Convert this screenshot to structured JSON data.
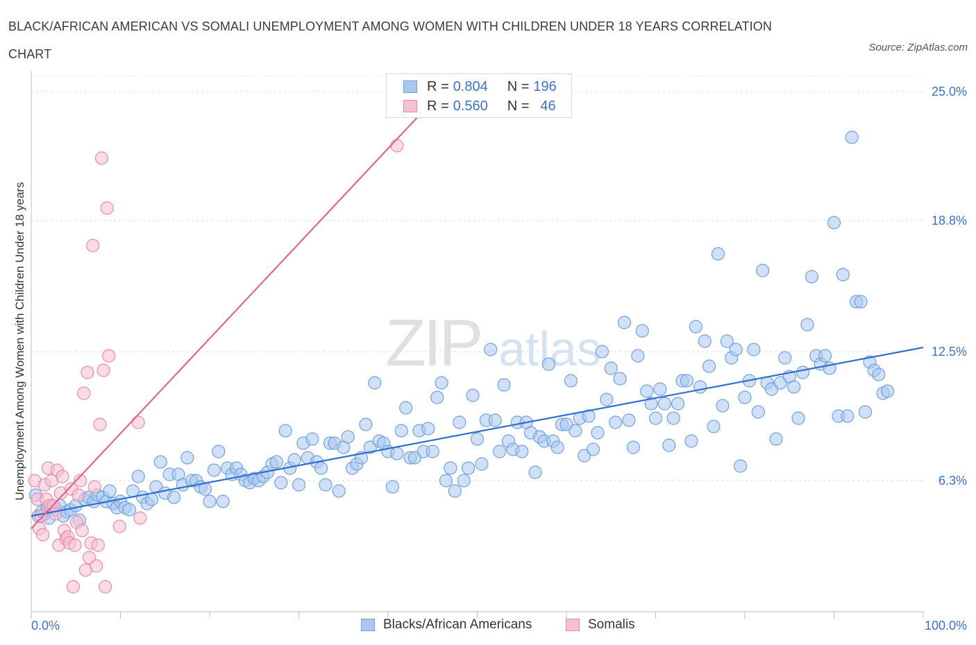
{
  "title": "BLACK/AFRICAN AMERICAN VS SOMALI UNEMPLOYMENT AMONG WOMEN WITH CHILDREN UNDER 18 YEARS CORRELATION CHART",
  "source": "Source: ZipAtlas.com",
  "watermark": {
    "zip": "ZIP",
    "atlas": "atlas"
  },
  "stats_legend": [
    {
      "r_label": "R =",
      "r_value": "0.804",
      "n_label": "N =",
      "n_value": "196",
      "color": "#a9c8f0",
      "border": "#6f9fe0"
    },
    {
      "r_label": "R =",
      "r_value": "0.560",
      "n_label": "N =",
      "n_value": "46",
      "color": "#f7c0d1",
      "border": "#e88aa8"
    }
  ],
  "colors": {
    "blue_fill": "#a9c8f0",
    "blue_stroke": "#6f9fe0",
    "blue_line": "#2f6fcf",
    "pink_fill": "#f7c0d1",
    "pink_stroke": "#e88aa8",
    "pink_line": "#e0648c",
    "tick_text": "#3a72c8"
  },
  "chart_data": {
    "type": "scatter",
    "title": "BLACK/AFRICAN AMERICAN VS SOMALI UNEMPLOYMENT AMONG WOMEN WITH CHILDREN UNDER 18 YEARS CORRELATION CHART",
    "xlabel": "",
    "ylabel": "Unemployment Among Women with Children Under 18 years",
    "xlim": [
      0,
      100
    ],
    "ylim": [
      0,
      27.5
    ],
    "x_tick_labels": [
      "0.0%",
      "100.0%"
    ],
    "y_ticks": [
      6.3,
      12.5,
      18.8,
      25.0
    ],
    "y_tick_labels": [
      "6.3%",
      "12.5%",
      "18.8%",
      "25.0%"
    ],
    "grid": true,
    "legend_position": "bottom",
    "series": [
      {
        "name": "Blacks/African Americans",
        "trend": {
          "x": [
            0,
            100
          ],
          "y": [
            4.6,
            12.7
          ]
        },
        "points": [
          [
            0.5,
            5.6
          ],
          [
            0.8,
            4.6
          ],
          [
            1.2,
            4.8
          ],
          [
            1.5,
            4.7
          ],
          [
            1.8,
            5.0
          ],
          [
            2.0,
            4.5
          ],
          [
            2.3,
            5.0
          ],
          [
            2.8,
            4.9
          ],
          [
            3.2,
            5.1
          ],
          [
            3.6,
            4.6
          ],
          [
            4.0,
            4.8
          ],
          [
            4.4,
            4.9
          ],
          [
            5.0,
            5.1
          ],
          [
            5.4,
            4.4
          ],
          [
            6.0,
            5.4
          ],
          [
            6.4,
            5.5
          ],
          [
            7.0,
            5.3
          ],
          [
            7.4,
            5.6
          ],
          [
            8.0,
            5.5
          ],
          [
            8.4,
            5.3
          ],
          [
            8.8,
            5.8
          ],
          [
            9.2,
            5.2
          ],
          [
            9.6,
            5.0
          ],
          [
            10.0,
            5.3
          ],
          [
            10.5,
            5.0
          ],
          [
            11.0,
            4.9
          ],
          [
            11.4,
            5.8
          ],
          [
            12.0,
            6.5
          ],
          [
            12.5,
            5.5
          ],
          [
            13.0,
            5.2
          ],
          [
            13.5,
            5.4
          ],
          [
            14.0,
            6.0
          ],
          [
            14.5,
            7.2
          ],
          [
            15.0,
            5.7
          ],
          [
            15.5,
            6.6
          ],
          [
            16.0,
            5.5
          ],
          [
            16.5,
            6.6
          ],
          [
            17.0,
            6.1
          ],
          [
            17.5,
            7.4
          ],
          [
            18.0,
            6.3
          ],
          [
            18.5,
            6.3
          ],
          [
            19.0,
            6.0
          ],
          [
            19.5,
            5.9
          ],
          [
            20.0,
            5.3
          ],
          [
            20.5,
            6.8
          ],
          [
            21.0,
            7.7
          ],
          [
            21.5,
            5.3
          ],
          [
            22.0,
            6.9
          ],
          [
            22.5,
            6.6
          ],
          [
            23.0,
            6.9
          ],
          [
            23.5,
            6.6
          ],
          [
            24.0,
            6.3
          ],
          [
            24.5,
            6.2
          ],
          [
            25.0,
            6.4
          ],
          [
            25.5,
            6.3
          ],
          [
            26.0,
            6.5
          ],
          [
            26.5,
            6.7
          ],
          [
            27.0,
            7.1
          ],
          [
            27.5,
            7.2
          ],
          [
            28.0,
            6.2
          ],
          [
            28.5,
            8.7
          ],
          [
            29.0,
            6.9
          ],
          [
            29.5,
            7.3
          ],
          [
            30.0,
            6.1
          ],
          [
            30.5,
            8.1
          ],
          [
            31.0,
            7.4
          ],
          [
            31.5,
            8.3
          ],
          [
            32.0,
            7.2
          ],
          [
            32.5,
            6.9
          ],
          [
            33.0,
            6.1
          ],
          [
            33.5,
            8.1
          ],
          [
            34.0,
            8.1
          ],
          [
            34.5,
            5.8
          ],
          [
            35.0,
            7.9
          ],
          [
            35.5,
            8.4
          ],
          [
            36.0,
            6.9
          ],
          [
            36.5,
            7.1
          ],
          [
            37.0,
            7.4
          ],
          [
            37.5,
            9.0
          ],
          [
            38.0,
            7.9
          ],
          [
            38.5,
            11.0
          ],
          [
            39.0,
            8.2
          ],
          [
            39.5,
            8.1
          ],
          [
            40.0,
            7.7
          ],
          [
            40.5,
            6.0
          ],
          [
            41.0,
            7.6
          ],
          [
            41.5,
            8.7
          ],
          [
            42.0,
            9.8
          ],
          [
            42.5,
            7.4
          ],
          [
            43.0,
            7.4
          ],
          [
            43.5,
            8.7
          ],
          [
            44.0,
            7.7
          ],
          [
            44.5,
            8.8
          ],
          [
            45.0,
            7.7
          ],
          [
            45.5,
            10.3
          ],
          [
            46.0,
            11.0
          ],
          [
            46.5,
            6.3
          ],
          [
            47.0,
            6.9
          ],
          [
            47.5,
            5.8
          ],
          [
            48.0,
            9.1
          ],
          [
            48.5,
            6.3
          ],
          [
            49.0,
            6.9
          ],
          [
            49.5,
            10.4
          ],
          [
            50.0,
            8.3
          ],
          [
            50.5,
            7.1
          ],
          [
            51.0,
            9.2
          ],
          [
            51.5,
            12.6
          ],
          [
            52.0,
            9.2
          ],
          [
            52.5,
            7.7
          ],
          [
            53.0,
            10.9
          ],
          [
            53.5,
            8.2
          ],
          [
            54.0,
            7.8
          ],
          [
            54.5,
            9.1
          ],
          [
            55.0,
            7.7
          ],
          [
            55.5,
            9.1
          ],
          [
            56.0,
            8.6
          ],
          [
            56.5,
            6.7
          ],
          [
            57.0,
            8.4
          ],
          [
            57.5,
            8.2
          ],
          [
            58.0,
            11.9
          ],
          [
            58.5,
            8.2
          ],
          [
            59.0,
            7.9
          ],
          [
            59.5,
            9.0
          ],
          [
            60.0,
            9.0
          ],
          [
            60.5,
            11.1
          ],
          [
            61.0,
            8.7
          ],
          [
            61.5,
            9.3
          ],
          [
            62.0,
            7.5
          ],
          [
            62.5,
            9.4
          ],
          [
            63.0,
            7.8
          ],
          [
            63.5,
            8.6
          ],
          [
            64.0,
            12.5
          ],
          [
            64.5,
            10.2
          ],
          [
            65.0,
            11.7
          ],
          [
            65.5,
            9.1
          ],
          [
            66.0,
            11.2
          ],
          [
            66.5,
            13.9
          ],
          [
            67.0,
            9.2
          ],
          [
            67.5,
            7.9
          ],
          [
            68.0,
            12.3
          ],
          [
            68.5,
            13.5
          ],
          [
            69.0,
            10.6
          ],
          [
            69.5,
            10.0
          ],
          [
            70.0,
            9.3
          ],
          [
            70.5,
            10.7
          ],
          [
            71.0,
            10.0
          ],
          [
            71.5,
            8.0
          ],
          [
            72.0,
            9.3
          ],
          [
            72.5,
            10.0
          ],
          [
            73.0,
            11.1
          ],
          [
            73.5,
            11.1
          ],
          [
            74.0,
            8.2
          ],
          [
            74.5,
            13.7
          ],
          [
            75.0,
            10.8
          ],
          [
            75.5,
            13.0
          ],
          [
            76.0,
            11.8
          ],
          [
            76.5,
            8.9
          ],
          [
            77.0,
            17.2
          ],
          [
            77.5,
            9.9
          ],
          [
            78.0,
            13.0
          ],
          [
            78.5,
            12.2
          ],
          [
            79.0,
            12.6
          ],
          [
            79.5,
            7.0
          ],
          [
            80.0,
            10.3
          ],
          [
            80.5,
            11.1
          ],
          [
            81.0,
            12.6
          ],
          [
            81.5,
            9.6
          ],
          [
            82.0,
            16.4
          ],
          [
            82.5,
            11.0
          ],
          [
            83.0,
            10.7
          ],
          [
            83.5,
            8.3
          ],
          [
            84.0,
            11.0
          ],
          [
            84.5,
            12.2
          ],
          [
            85.0,
            11.3
          ],
          [
            85.5,
            10.8
          ],
          [
            86.0,
            9.3
          ],
          [
            86.5,
            11.5
          ],
          [
            87.0,
            13.8
          ],
          [
            87.5,
            16.1
          ],
          [
            88.0,
            12.3
          ],
          [
            88.5,
            11.9
          ],
          [
            89.0,
            12.3
          ],
          [
            89.5,
            11.7
          ],
          [
            90.0,
            18.7
          ],
          [
            90.5,
            9.4
          ],
          [
            91.0,
            16.2
          ],
          [
            91.5,
            9.4
          ],
          [
            92.0,
            22.8
          ],
          [
            92.5,
            14.9
          ],
          [
            93.0,
            14.9
          ],
          [
            93.5,
            9.6
          ],
          [
            94.0,
            12.0
          ],
          [
            94.5,
            11.6
          ],
          [
            95.0,
            11.4
          ],
          [
            95.5,
            10.5
          ],
          [
            96.0,
            10.6
          ]
        ]
      },
      {
        "name": "Somalis",
        "trend": {
          "x": [
            0,
            46
          ],
          "y": [
            4.0,
            25.0
          ]
        },
        "points": [
          [
            0.4,
            6.3
          ],
          [
            0.7,
            5.4
          ],
          [
            0.9,
            4.0
          ],
          [
            1.1,
            4.6
          ],
          [
            1.3,
            3.7
          ],
          [
            1.5,
            6.1
          ],
          [
            1.7,
            5.4
          ],
          [
            1.9,
            6.9
          ],
          [
            2.1,
            5.1
          ],
          [
            2.3,
            6.3
          ],
          [
            2.5,
            5.1
          ],
          [
            2.7,
            4.7
          ],
          [
            2.9,
            6.8
          ],
          [
            3.1,
            3.2
          ],
          [
            3.3,
            5.7
          ],
          [
            3.5,
            6.5
          ],
          [
            3.7,
            3.9
          ],
          [
            3.9,
            3.5
          ],
          [
            4.1,
            3.6
          ],
          [
            4.3,
            3.3
          ],
          [
            4.5,
            5.9
          ],
          [
            4.7,
            1.2
          ],
          [
            4.9,
            3.2
          ],
          [
            5.1,
            4.3
          ],
          [
            5.3,
            5.6
          ],
          [
            5.5,
            6.3
          ],
          [
            5.7,
            3.9
          ],
          [
            5.9,
            10.5
          ],
          [
            6.1,
            2.0
          ],
          [
            6.3,
            11.5
          ],
          [
            6.5,
            2.6
          ],
          [
            6.7,
            3.3
          ],
          [
            6.9,
            17.6
          ],
          [
            7.1,
            6.0
          ],
          [
            7.3,
            2.2
          ],
          [
            7.5,
            3.2
          ],
          [
            7.7,
            9.0
          ],
          [
            7.9,
            21.8
          ],
          [
            8.1,
            11.6
          ],
          [
            8.3,
            1.2
          ],
          [
            8.5,
            19.4
          ],
          [
            8.7,
            12.3
          ],
          [
            9.9,
            4.1
          ],
          [
            12.0,
            9.1
          ],
          [
            12.2,
            4.5
          ],
          [
            41.0,
            22.4
          ]
        ]
      }
    ]
  },
  "axis": {
    "y_label": "Unemployment Among Women with Children Under 18 years",
    "x_min_label": "0.0%",
    "x_max_label": "100.0%",
    "y_labels": [
      "6.3%",
      "12.5%",
      "18.8%",
      "25.0%"
    ]
  },
  "legend": {
    "items": [
      {
        "label": "Blacks/African Americans"
      },
      {
        "label": "Somalis"
      }
    ]
  }
}
